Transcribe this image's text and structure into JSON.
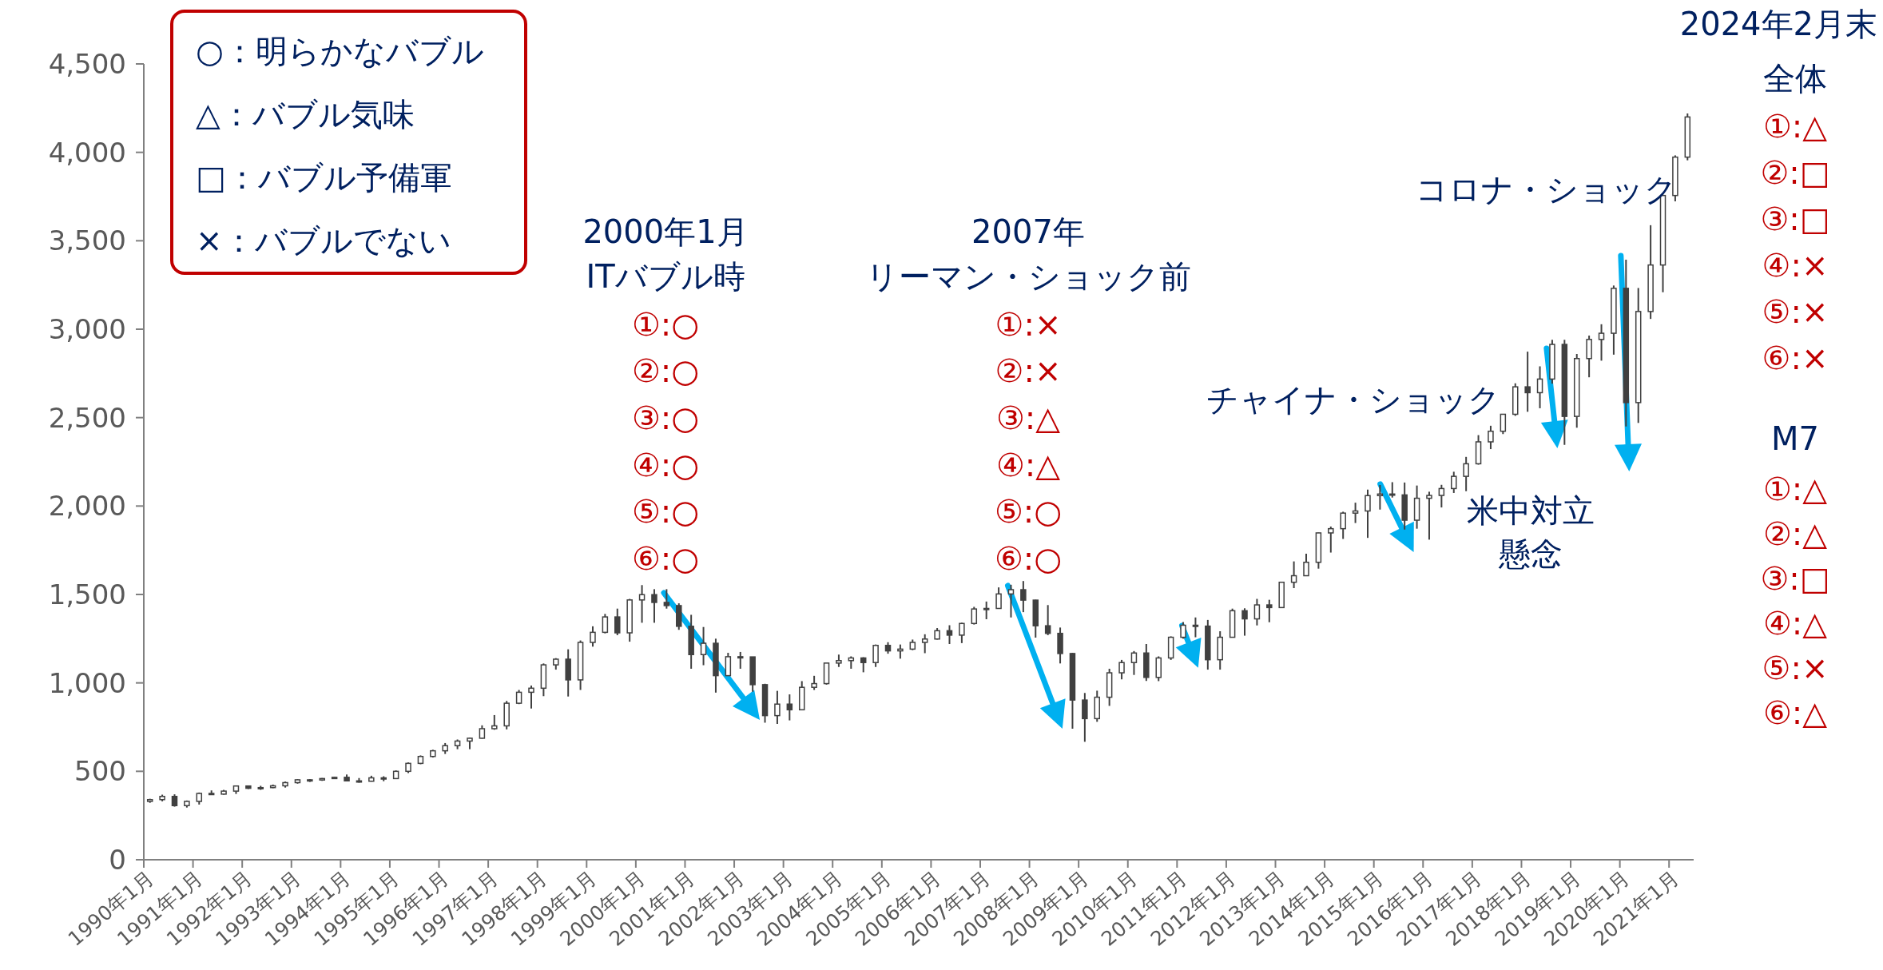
{
  "chart_data": {
    "type": "candlestick",
    "color": "#404040",
    "categories": [
      "1990年1月",
      null,
      null,
      null,
      "1991年1月",
      null,
      null,
      null,
      "1992年1月",
      null,
      null,
      null,
      "1993年1月",
      null,
      null,
      null,
      "1994年1月",
      null,
      null,
      null,
      "1995年1月",
      null,
      null,
      null,
      "1996年1月",
      null,
      null,
      null,
      "1997年1月",
      null,
      null,
      null,
      "1998年1月",
      null,
      null,
      null,
      "1999年1月",
      null,
      null,
      null,
      "2000年1月",
      null,
      null,
      null,
      "2001年1月",
      null,
      null,
      null,
      "2002年1月",
      null,
      null,
      null,
      "2003年1月",
      null,
      null,
      null,
      "2004年1月",
      null,
      null,
      null,
      "2005年1月",
      null,
      null,
      null,
      "2006年1月",
      null,
      null,
      null,
      "2007年1月",
      null,
      null,
      null,
      "2008年1月",
      null,
      null,
      null,
      "2009年1月",
      null,
      null,
      null,
      "2010年1月",
      null,
      null,
      null,
      "2011年1月",
      null,
      null,
      null,
      "2012年1月",
      null,
      null,
      null,
      "2013年1月",
      null,
      null,
      null,
      "2014年1月",
      null,
      null,
      null,
      "2015年1月",
      null,
      null,
      null,
      "2016年1月",
      null,
      null,
      null,
      "2017年1月",
      null,
      null,
      null,
      "2018年1月",
      null,
      null,
      null,
      "2019年1月",
      null,
      null,
      null,
      "2020年1月",
      null,
      null,
      null,
      "2021年1月",
      null
    ],
    "ohlc": [
      [
        330,
        345,
        322,
        340
      ],
      [
        340,
        368,
        330,
        358
      ],
      [
        358,
        370,
        300,
        306
      ],
      [
        306,
        335,
        295,
        330
      ],
      [
        330,
        380,
        312,
        375
      ],
      [
        375,
        392,
        366,
        371
      ],
      [
        371,
        395,
        368,
        388
      ],
      [
        388,
        420,
        372,
        417
      ],
      [
        417,
        420,
        400,
        404
      ],
      [
        404,
        418,
        395,
        408
      ],
      [
        408,
        425,
        405,
        418
      ],
      [
        418,
        442,
        408,
        436
      ],
      [
        436,
        456,
        430,
        452
      ],
      [
        452,
        456,
        440,
        451
      ],
      [
        451,
        462,
        446,
        459
      ],
      [
        459,
        470,
        457,
        466
      ],
      [
        466,
        482,
        445,
        446
      ],
      [
        446,
        462,
        436,
        444
      ],
      [
        444,
        475,
        442,
        463
      ],
      [
        463,
        472,
        444,
        459
      ],
      [
        459,
        505,
        458,
        500
      ],
      [
        500,
        550,
        490,
        545
      ],
      [
        545,
        590,
        540,
        584
      ],
      [
        584,
        622,
        578,
        616
      ],
      [
        616,
        660,
        598,
        645
      ],
      [
        645,
        680,
        625,
        671
      ],
      [
        671,
        690,
        625,
        687
      ],
      [
        687,
        760,
        685,
        741
      ],
      [
        741,
        818,
        735,
        757
      ],
      [
        757,
        898,
        737,
        885
      ],
      [
        885,
        960,
        880,
        947
      ],
      [
        947,
        985,
        855,
        970
      ],
      [
        970,
        1110,
        925,
        1102
      ],
      [
        1102,
        1140,
        1075,
        1134
      ],
      [
        1134,
        1190,
        923,
        1017
      ],
      [
        1017,
        1240,
        960,
        1229
      ],
      [
        1229,
        1320,
        1205,
        1286
      ],
      [
        1286,
        1390,
        1280,
        1373
      ],
      [
        1373,
        1420,
        1270,
        1283
      ],
      [
        1283,
        1475,
        1233,
        1469
      ],
      [
        1469,
        1553,
        1340,
        1499
      ],
      [
        1499,
        1530,
        1340,
        1455
      ],
      [
        1455,
        1530,
        1420,
        1437
      ],
      [
        1437,
        1450,
        1300,
        1320
      ],
      [
        1320,
        1385,
        1080,
        1160
      ],
      [
        1160,
        1316,
        1100,
        1224
      ],
      [
        1224,
        1250,
        945,
        1041
      ],
      [
        1041,
        1170,
        1040,
        1148
      ],
      [
        1148,
        1175,
        1080,
        1147
      ],
      [
        1147,
        1147,
        950,
        990
      ],
      [
        990,
        995,
        775,
        815
      ],
      [
        815,
        955,
        768,
        880
      ],
      [
        880,
        935,
        788,
        848
      ],
      [
        848,
        1010,
        847,
        975
      ],
      [
        975,
        1040,
        960,
        996
      ],
      [
        996,
        1112,
        990,
        1112
      ],
      [
        1112,
        1160,
        1090,
        1126
      ],
      [
        1126,
        1150,
        1080,
        1141
      ],
      [
        1141,
        1145,
        1060,
        1115
      ],
      [
        1115,
        1217,
        1090,
        1212
      ],
      [
        1212,
        1230,
        1165,
        1181
      ],
      [
        1181,
        1217,
        1137,
        1191
      ],
      [
        1191,
        1245,
        1185,
        1229
      ],
      [
        1229,
        1275,
        1168,
        1248
      ],
      [
        1248,
        1310,
        1245,
        1295
      ],
      [
        1295,
        1326,
        1220,
        1270
      ],
      [
        1270,
        1340,
        1225,
        1336
      ],
      [
        1336,
        1430,
        1330,
        1418
      ],
      [
        1418,
        1460,
        1360,
        1421
      ],
      [
        1421,
        1540,
        1420,
        1503
      ],
      [
        1503,
        1555,
        1370,
        1527
      ],
      [
        1527,
        1576,
        1400,
        1468
      ],
      [
        1468,
        1470,
        1256,
        1323
      ],
      [
        1323,
        1440,
        1270,
        1280
      ],
      [
        1280,
        1313,
        1110,
        1166
      ],
      [
        1166,
        1170,
        741,
        903
      ],
      [
        903,
        943,
        667,
        798
      ],
      [
        798,
        956,
        780,
        919
      ],
      [
        919,
        1080,
        870,
        1057
      ],
      [
        1057,
        1130,
        1020,
        1115
      ],
      [
        1115,
        1180,
        1045,
        1169
      ],
      [
        1169,
        1220,
        1011,
        1031
      ],
      [
        1031,
        1150,
        1010,
        1141
      ],
      [
        1141,
        1263,
        1130,
        1258
      ],
      [
        1258,
        1344,
        1250,
        1326
      ],
      [
        1326,
        1370,
        1258,
        1321
      ],
      [
        1321,
        1356,
        1075,
        1131
      ],
      [
        1131,
        1292,
        1075,
        1258
      ],
      [
        1258,
        1420,
        1258,
        1408
      ],
      [
        1408,
        1422,
        1267,
        1362
      ],
      [
        1362,
        1475,
        1325,
        1441
      ],
      [
        1441,
        1470,
        1343,
        1426
      ],
      [
        1426,
        1570,
        1426,
        1569
      ],
      [
        1569,
        1687,
        1536,
        1606
      ],
      [
        1606,
        1730,
        1604,
        1682
      ],
      [
        1682,
        1850,
        1646,
        1848
      ],
      [
        1848,
        1884,
        1737,
        1872
      ],
      [
        1872,
        1968,
        1814,
        1960
      ],
      [
        1960,
        2019,
        1904,
        1972
      ],
      [
        1972,
        2093,
        1820,
        2059
      ],
      [
        2059,
        2119,
        1980,
        2068
      ],
      [
        2068,
        2135,
        2048,
        2063
      ],
      [
        2063,
        2133,
        1867,
        1920
      ],
      [
        1920,
        2116,
        1872,
        2044
      ],
      [
        2044,
        2081,
        1810,
        2060
      ],
      [
        2060,
        2120,
        1992,
        2099
      ],
      [
        2099,
        2194,
        2074,
        2168
      ],
      [
        2168,
        2278,
        2084,
        2239
      ],
      [
        2239,
        2401,
        2234,
        2363
      ],
      [
        2363,
        2454,
        2322,
        2423
      ],
      [
        2423,
        2519,
        2407,
        2519
      ],
      [
        2519,
        2694,
        2510,
        2674
      ],
      [
        2674,
        2873,
        2533,
        2641
      ],
      [
        2641,
        2790,
        2553,
        2718
      ],
      [
        2718,
        2940,
        2692,
        2914
      ],
      [
        2914,
        2940,
        2346,
        2507
      ],
      [
        2507,
        2860,
        2443,
        2834
      ],
      [
        2834,
        2964,
        2728,
        2942
      ],
      [
        2942,
        3028,
        2822,
        2977
      ],
      [
        2977,
        3247,
        2856,
        3231
      ],
      [
        3231,
        3393,
        2450,
        2585
      ],
      [
        2585,
        3233,
        2470,
        3100
      ],
      [
        3100,
        3588,
        3058,
        3363
      ],
      [
        3363,
        3760,
        3209,
        3756
      ],
      [
        3756,
        3983,
        3723,
        3973
      ],
      [
        3973,
        4220,
        3955,
        4200
      ]
    ],
    "ylim": [
      0,
      4500
    ],
    "yticks": [
      0,
      500,
      {
        "value": 1000,
        "label": "1,000"
      },
      {
        "value": 1500,
        "label": "1,500"
      },
      {
        "value": 2000,
        "label": "2,000"
      },
      {
        "value": 2500,
        "label": "2,500"
      },
      {
        "value": 3000,
        "label": "3,000"
      },
      {
        "value": 3500,
        "label": "3,500"
      },
      {
        "value": 4000,
        "label": "4,000"
      },
      {
        "value": 4500,
        "label": "4,500"
      }
    ],
    "annotations": [
      "○：明らかなバブル",
      "△：バブル気味",
      "□：バブル予備軍",
      "×：バブルでない",
      "2000年1月",
      "ITバブル時",
      "①:○",
      "②:○",
      "③:○",
      "④:○",
      "⑤:○",
      "⑥:○",
      "2007年",
      "リーマン・ショック前",
      "①:×",
      "②:×",
      "③:△",
      "④:△",
      "⑤:○",
      "⑥:○",
      "チャイナ・ショック",
      "米中対立",
      "懸念",
      "コロナ・ショック",
      "2024年2月末",
      "全体",
      "①:△",
      "②:□",
      "③:□",
      "④:×",
      "⑤:×",
      "⑥:×",
      "M7",
      "①:△",
      "②:△",
      "③:□",
      "④:△",
      "⑤:×",
      "⑥:△"
    ]
  }
}
